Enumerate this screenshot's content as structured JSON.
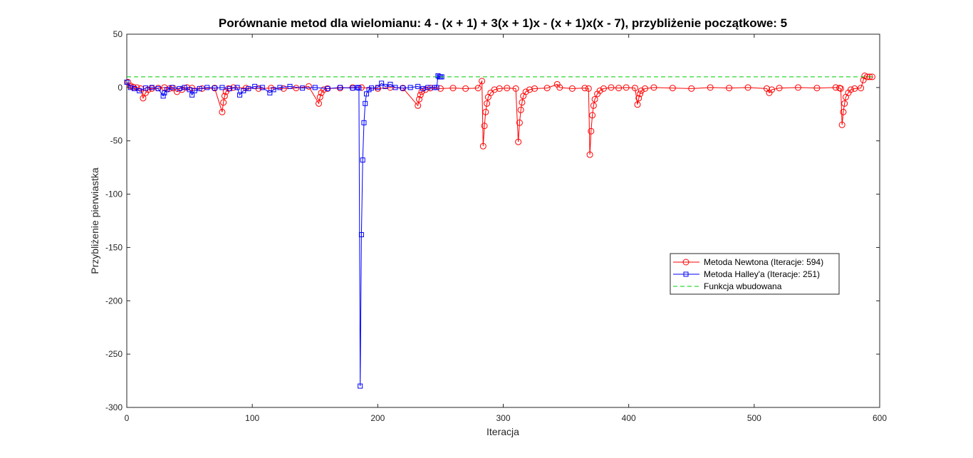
{
  "chart_data": {
    "type": "line",
    "title": "Porównanie metod dla wielomianu: 4 - (x + 1) + 3(x + 1)x - (x + 1)x(x - 7), przybliżenie początkowe: 5",
    "xlabel": "Iteracja",
    "ylabel": "Przybliżenie pierwiastka",
    "xlim": [
      0,
      600
    ],
    "ylim": [
      -300,
      50
    ],
    "xticks": [
      0,
      100,
      200,
      300,
      400,
      500,
      600
    ],
    "yticks": [
      -300,
      -250,
      -200,
      -150,
      -100,
      -50,
      0,
      50
    ],
    "grid": false,
    "legend_position": "inside-right",
    "series": [
      {
        "name": "Metoda Newtona (Iteracje: 594)",
        "color": "#ff0000",
        "marker": "circle",
        "points": [
          [
            1,
            5
          ],
          [
            3,
            1.5
          ],
          [
            5,
            0.5
          ],
          [
            8,
            0
          ],
          [
            11,
            -1
          ],
          [
            13,
            -10
          ],
          [
            15,
            -5
          ],
          [
            17,
            -2
          ],
          [
            20,
            -1
          ],
          [
            25,
            -0.5
          ],
          [
            30,
            0
          ],
          [
            34,
            -1
          ],
          [
            37,
            -0.5
          ],
          [
            40,
            -4
          ],
          [
            44,
            -2
          ],
          [
            48,
            0
          ],
          [
            52,
            -0.5
          ],
          [
            60,
            -1
          ],
          [
            70,
            -0.5
          ],
          [
            76,
            -23
          ],
          [
            77,
            -14
          ],
          [
            78,
            -8
          ],
          [
            79,
            -4
          ],
          [
            81,
            -1
          ],
          [
            85,
            0
          ],
          [
            95,
            -0.5
          ],
          [
            105,
            -1
          ],
          [
            115,
            -0.5
          ],
          [
            125,
            -1
          ],
          [
            135,
            -0.5
          ],
          [
            145,
            1
          ],
          [
            153,
            -15
          ],
          [
            154,
            -9
          ],
          [
            155,
            -5
          ],
          [
            157,
            -2
          ],
          [
            160,
            -1
          ],
          [
            170,
            -0.5
          ],
          [
            180,
            0
          ],
          [
            187,
            0
          ],
          [
            200,
            -1
          ],
          [
            210,
            0
          ],
          [
            220,
            -0.5
          ],
          [
            232,
            -17
          ],
          [
            233,
            -11
          ],
          [
            234,
            -7
          ],
          [
            235,
            -4
          ],
          [
            238,
            -2
          ],
          [
            242,
            -0.5
          ],
          [
            250,
            -1
          ],
          [
            260,
            -0.5
          ],
          [
            270,
            -1
          ],
          [
            280,
            -0.5
          ],
          [
            283,
            6
          ],
          [
            284,
            -55
          ],
          [
            285,
            -36
          ],
          [
            286,
            -23
          ],
          [
            287,
            -15
          ],
          [
            288,
            -9
          ],
          [
            290,
            -5
          ],
          [
            293,
            -2
          ],
          [
            297,
            -1
          ],
          [
            303,
            -0.5
          ],
          [
            310,
            -1
          ],
          [
            312,
            -51
          ],
          [
            313,
            -33
          ],
          [
            314,
            -21
          ],
          [
            315,
            -14
          ],
          [
            316,
            -8
          ],
          [
            318,
            -4
          ],
          [
            321,
            -2
          ],
          [
            325,
            -1
          ],
          [
            335,
            -0.5
          ],
          [
            343,
            3
          ],
          [
            345,
            0
          ],
          [
            355,
            -1
          ],
          [
            365,
            -0.5
          ],
          [
            368,
            -1
          ],
          [
            369,
            -63
          ],
          [
            370,
            -41
          ],
          [
            371,
            -26
          ],
          [
            372,
            -17
          ],
          [
            373,
            -11
          ],
          [
            375,
            -6
          ],
          [
            377,
            -3
          ],
          [
            380,
            -1
          ],
          [
            386,
            0
          ],
          [
            392,
            -0.5
          ],
          [
            398,
            0
          ],
          [
            405,
            -0.5
          ],
          [
            407,
            -16
          ],
          [
            408,
            -10
          ],
          [
            409,
            -6
          ],
          [
            410,
            -3
          ],
          [
            413,
            -1
          ],
          [
            420,
            0
          ],
          [
            435,
            -0.5
          ],
          [
            450,
            -1
          ],
          [
            465,
            0
          ],
          [
            480,
            -0.5
          ],
          [
            495,
            0
          ],
          [
            510,
            -1
          ],
          [
            512,
            -5
          ],
          [
            514,
            -2
          ],
          [
            520,
            -0.5
          ],
          [
            535,
            0
          ],
          [
            550,
            -0.5
          ],
          [
            565,
            0
          ],
          [
            568,
            -0.5
          ],
          [
            569,
            -1
          ],
          [
            570,
            -35
          ],
          [
            571,
            -23
          ],
          [
            572,
            -15
          ],
          [
            573,
            -9
          ],
          [
            575,
            -5
          ],
          [
            577,
            -2
          ],
          [
            580,
            -1
          ],
          [
            585,
            -0.5
          ],
          [
            587,
            7
          ],
          [
            588,
            11
          ],
          [
            590,
            10
          ],
          [
            592,
            10
          ],
          [
            594,
            10
          ]
        ]
      },
      {
        "name": "Metoda Halley'a (Iteracje: 251)",
        "color": "#0000ff",
        "marker": "square",
        "points": [
          [
            0,
            5
          ],
          [
            3,
            0
          ],
          [
            6,
            -1
          ],
          [
            10,
            -3
          ],
          [
            15,
            -0.5
          ],
          [
            20,
            0
          ],
          [
            25,
            -1
          ],
          [
            29,
            -8
          ],
          [
            30,
            -5
          ],
          [
            32,
            -2
          ],
          [
            36,
            0
          ],
          [
            42,
            -1
          ],
          [
            46,
            0
          ],
          [
            50,
            -2
          ],
          [
            52,
            -7
          ],
          [
            54,
            -3
          ],
          [
            58,
            -1
          ],
          [
            64,
            0
          ],
          [
            70,
            -0.5
          ],
          [
            76,
            0
          ],
          [
            82,
            -1
          ],
          [
            88,
            0
          ],
          [
            90,
            -7
          ],
          [
            93,
            -3
          ],
          [
            97,
            -1
          ],
          [
            102,
            1
          ],
          [
            108,
            0
          ],
          [
            114,
            -5
          ],
          [
            117,
            -2
          ],
          [
            122,
            0
          ],
          [
            130,
            1
          ],
          [
            140,
            -0.5
          ],
          [
            150,
            0
          ],
          [
            160,
            -1
          ],
          [
            170,
            0
          ],
          [
            180,
            -0.5
          ],
          [
            184,
            0
          ],
          [
            185,
            -0.5
          ],
          [
            186,
            -280
          ],
          [
            187,
            -138
          ],
          [
            188,
            -68
          ],
          [
            189,
            -33
          ],
          [
            190,
            -15
          ],
          [
            191,
            -6
          ],
          [
            193,
            -2
          ],
          [
            195,
            -0.5
          ],
          [
            200,
            0
          ],
          [
            203,
            4
          ],
          [
            206,
            1
          ],
          [
            210,
            3
          ],
          [
            214,
            0
          ],
          [
            220,
            -0.5
          ],
          [
            226,
            0
          ],
          [
            232,
            1
          ],
          [
            236,
            -1
          ],
          [
            240,
            0
          ],
          [
            245,
            0
          ],
          [
            247,
            0
          ],
          [
            248,
            11
          ],
          [
            249,
            10
          ],
          [
            250,
            10
          ],
          [
            251,
            10
          ]
        ]
      },
      {
        "name": "Funkcja wbudowana",
        "color": "#00cc00",
        "marker": "none",
        "dash": true,
        "points": [
          [
            0,
            10
          ],
          [
            594,
            10
          ]
        ]
      }
    ]
  }
}
